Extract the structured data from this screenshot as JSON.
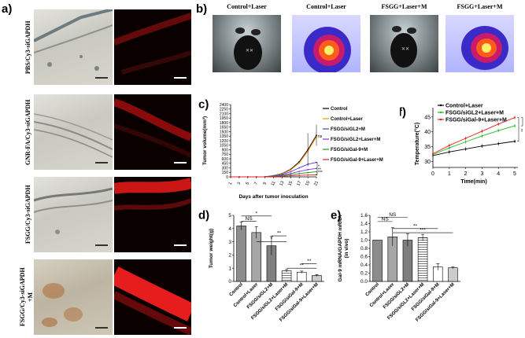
{
  "panel_a": {
    "label": "a)",
    "rows": [
      {
        "label": "PBS/Cy3-siGAPDH"
      },
      {
        "label": "GNR-FA/Cy3-siGAPDH"
      },
      {
        "label": "FSGG/Cy3-siGAPDH"
      },
      {
        "label": "FSGG/Cy3-siGAPDH\n+M"
      }
    ]
  },
  "panel_b": {
    "label": "b)",
    "images": [
      {
        "label": "Control+Laser",
        "kind": "photo"
      },
      {
        "label": "Control+Laser",
        "kind": "thermal"
      },
      {
        "label": "FSGG+Laser+M",
        "kind": "photo"
      },
      {
        "label": "FSGG+Laser+M",
        "kind": "thermal"
      }
    ]
  },
  "chart_data": [
    {
      "id": "c",
      "panel_label": "c)",
      "type": "line",
      "xlabel": "Days after tumor inoculation",
      "ylabel": "Tumor volume(mm³)",
      "x": [
        1,
        3,
        5,
        7,
        9,
        11,
        13,
        15,
        17,
        19,
        21
      ],
      "ylim": [
        0,
        2400
      ],
      "yticks": [
        0,
        150,
        300,
        450,
        600,
        750,
        900,
        1050,
        1200,
        1350,
        1500,
        1650,
        1800,
        1950,
        2100,
        2250,
        2400
      ],
      "series": [
        {
          "name": "Control",
          "color": "#000000",
          "values": [
            0,
            0,
            0,
            0,
            5,
            40,
            110,
            250,
            500,
            900,
            1380
          ]
        },
        {
          "name": "Control+Laser",
          "color": "#ff8c00",
          "values": [
            0,
            0,
            0,
            0,
            5,
            35,
            100,
            230,
            460,
            850,
            1330
          ]
        },
        {
          "name": "FSGG/siGL2+M",
          "color": "#4a3cd0",
          "values": [
            0,
            0,
            0,
            0,
            4,
            30,
            80,
            170,
            300,
            420,
            480
          ]
        },
        {
          "name": "FSGG/siGL2+Laser+M",
          "color": "#8a2be2",
          "values": [
            0,
            0,
            0,
            0,
            3,
            20,
            55,
            110,
            180,
            240,
            280
          ]
        },
        {
          "name": "FSGG/siGal-9+M",
          "color": "#1a9a1a",
          "values": [
            0,
            0,
            0,
            0,
            3,
            15,
            40,
            70,
            110,
            140,
            170
          ]
        },
        {
          "name": "FSGG/siGal-9+Laser+M",
          "color": "#e02020",
          "values": [
            0,
            0,
            0,
            0,
            2,
            8,
            20,
            35,
            50,
            60,
            70
          ]
        }
      ],
      "annotations": [
        "ns",
        "*",
        "**",
        "***"
      ]
    },
    {
      "id": "f",
      "panel_label": "f)",
      "type": "line",
      "xlabel": "Time(min)",
      "ylabel": "Temperature(°C)",
      "x": [
        0,
        1,
        2,
        3,
        4,
        5
      ],
      "ylim": [
        28,
        46
      ],
      "yticks": [
        30,
        35,
        40,
        45
      ],
      "series": [
        {
          "name": "Control+Laser",
          "color": "#000000",
          "values": [
            32.0,
            33.2,
            34.2,
            35.2,
            36.0,
            36.8
          ]
        },
        {
          "name": "FSGG/siGL2+Laser+M",
          "color": "#1fbf1f",
          "values": [
            32.3,
            34.6,
            36.6,
            38.6,
            40.4,
            42.0
          ]
        },
        {
          "name": "FSGG/siGal-9+Laser+M",
          "color": "#e02020",
          "values": [
            32.6,
            35.4,
            37.8,
            40.2,
            42.6,
            44.8
          ]
        }
      ],
      "annotations": [
        "**",
        "**"
      ]
    },
    {
      "id": "d",
      "panel_label": "d)",
      "type": "bar",
      "ylabel": "Tumor weight(g)",
      "ylim": [
        0,
        5
      ],
      "yticks": [
        0,
        1,
        2,
        3,
        4,
        5
      ],
      "categories": [
        "Control",
        "Control+Laser",
        "FSGG/siGL2+M",
        "FSGG/siGL2+Laser+M",
        "FSGG/siGal-9+M",
        "FSGG/siGal-9+Laser+M"
      ],
      "values": [
        4.2,
        3.7,
        2.7,
        0.8,
        0.7,
        0.45
      ],
      "errors": [
        0.3,
        0.45,
        0.7,
        0.1,
        0.08,
        0.06
      ],
      "annotations": [
        "NS",
        "*",
        "*",
        "**",
        "**",
        "**"
      ]
    },
    {
      "id": "e",
      "panel_label": "e)",
      "type": "bar",
      "ylabel": "Gal-9 mRNA/GAPDH mRNA\n(in vivo)",
      "ylim": [
        0,
        1.6
      ],
      "yticks": [
        0.0,
        0.2,
        0.4,
        0.6,
        0.8,
        1.0,
        1.2,
        1.4,
        1.6
      ],
      "categories": [
        "Control",
        "Control+Laser",
        "FSGG/siGL2+M",
        "FSGG/siGL2+Laser+M",
        "FSGG/siGal-9+M",
        "FSGG/siGal-9+Laser+M"
      ],
      "values": [
        1.0,
        1.08,
        1.0,
        1.06,
        0.35,
        0.33
      ],
      "errors": [
        0.0,
        0.22,
        0.15,
        0.08,
        0.08,
        0.02
      ],
      "annotations": [
        "NS",
        "NS",
        "**",
        "***"
      ]
    }
  ]
}
